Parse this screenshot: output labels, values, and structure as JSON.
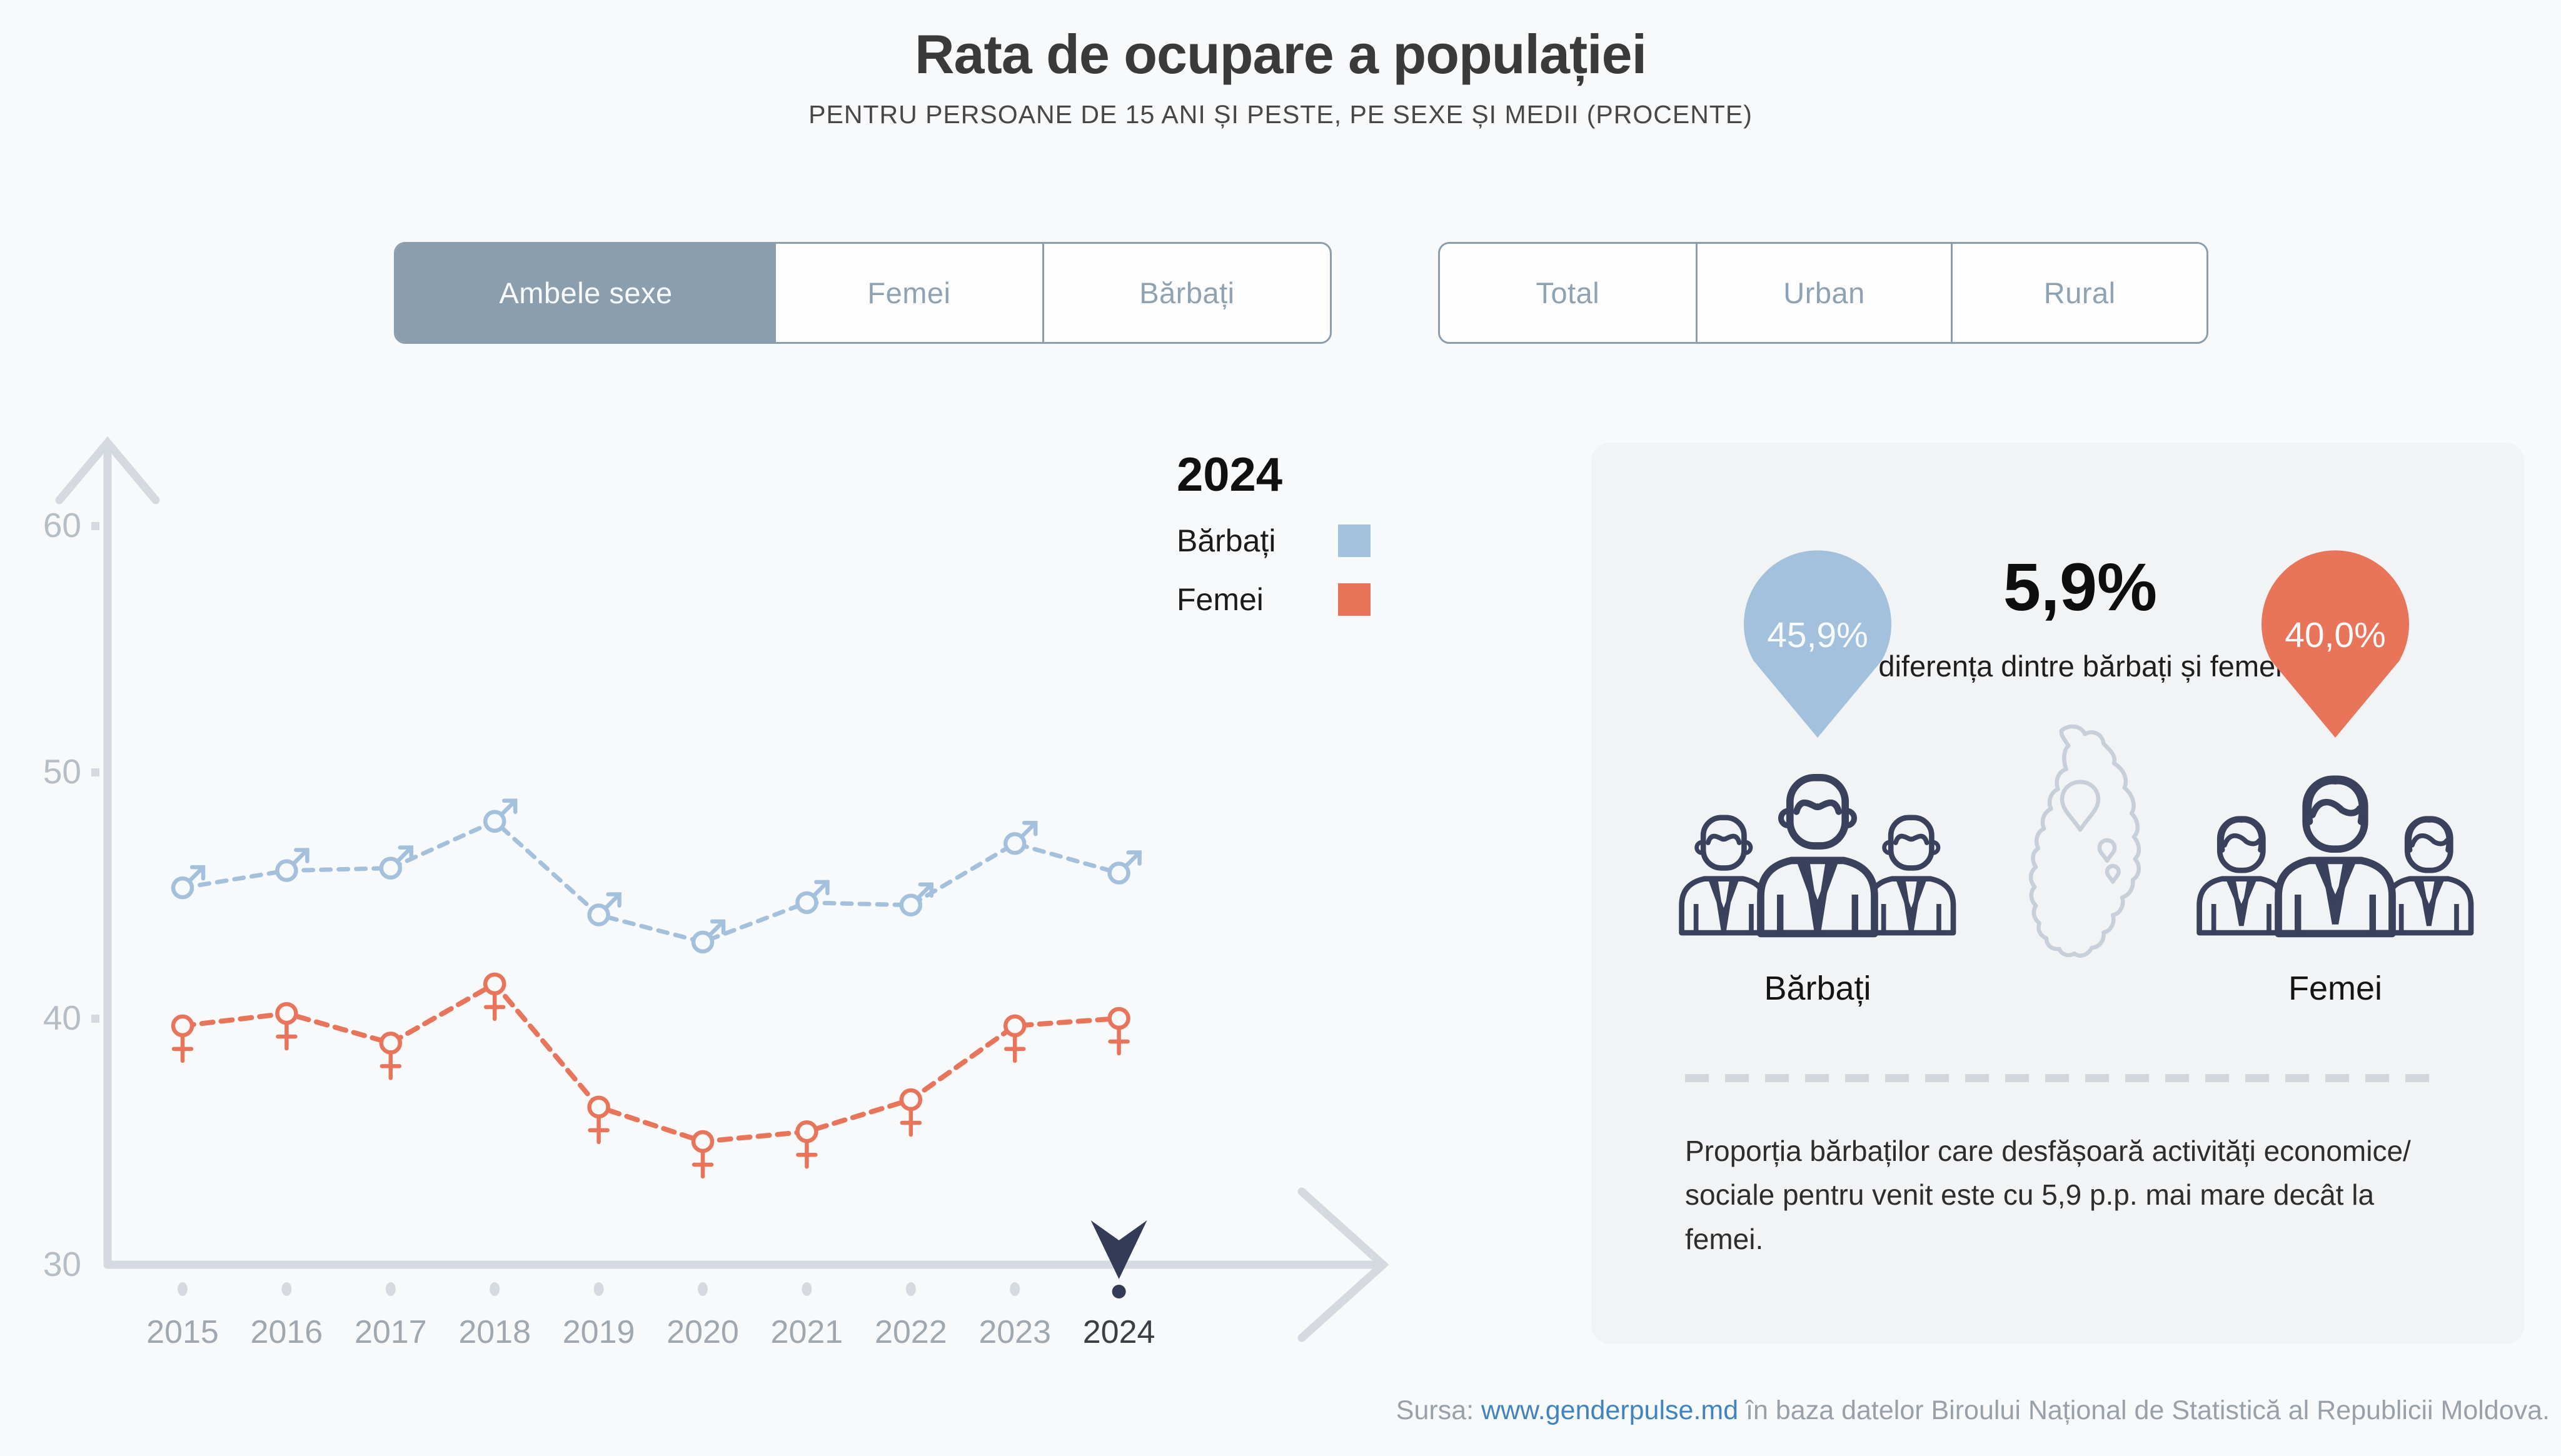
{
  "header": {
    "title": "Rata de ocupare a populației",
    "subtitle": "PENTRU PERSOANE DE 15 ANI ȘI PESTE, PE SEXE ȘI MEDII (PROCENTE)"
  },
  "controls": {
    "sex_tabs": [
      {
        "label": "Ambele sexe",
        "selected": true
      },
      {
        "label": "Femei",
        "selected": false
      },
      {
        "label": "Bărbați",
        "selected": false
      }
    ],
    "area_tabs": [
      {
        "label": "Total",
        "selected": false
      },
      {
        "label": "Urban",
        "selected": false
      },
      {
        "label": "Rural",
        "selected": false
      }
    ]
  },
  "legend": {
    "year": "2024",
    "items": [
      {
        "label": "Bărbați",
        "color": "#A3C1DD"
      },
      {
        "label": "Femei",
        "color": "#E8745A"
      }
    ]
  },
  "chart_data": {
    "type": "line",
    "title": "Rata de ocupare a populației",
    "categories": [
      "2015",
      "2016",
      "2017",
      "2018",
      "2019",
      "2020",
      "2021",
      "2022",
      "2023",
      "2024"
    ],
    "series": [
      {
        "name": "Bărbați",
        "marker": "male",
        "color": "#A3C1DD",
        "values": [
          45.3,
          46.0,
          46.1,
          48.0,
          44.2,
          43.1,
          44.7,
          44.6,
          47.1,
          45.9
        ]
      },
      {
        "name": "Femei",
        "marker": "female",
        "color": "#E8745A",
        "values": [
          39.7,
          40.2,
          39.0,
          41.4,
          36.4,
          35.0,
          35.4,
          36.7,
          39.7,
          40.0
        ]
      }
    ],
    "ylim": [
      30,
      63
    ],
    "yticks": [
      30,
      40,
      50,
      60
    ],
    "selected_category": "2024",
    "grid": false,
    "line_style": "dashed",
    "legend_position": "top-right"
  },
  "panel": {
    "men_pin_value": "45,9%",
    "women_pin_value": "40,0%",
    "diff_value": "5,9%",
    "diff_caption": "diferența dintre bărbați și femei",
    "men_label": "Bărbați",
    "women_label": "Femei",
    "note": "Proporția bărbaților care desfășoară activități economice/ sociale pentru venit este cu 5,9 p.p. mai mare decât la femei."
  },
  "footer": {
    "prefix": "Sursa: ",
    "link": "www.genderpulse.md",
    "suffix": " în baza datelor Biroului Național de Statistică al Republicii Moldova."
  },
  "colors": {
    "page_bg": "#F8F9FA",
    "panel_bg": "#F2F3F5",
    "axis": "#D5DAE1",
    "axis_label": "#B5BDC6",
    "year_label": "#9FA8B1",
    "year_label_selected": "#3A3F46",
    "navy": "#333B56",
    "icon_navy": "#39415C",
    "map_outline": "#C7D0DA",
    "blue": "#A3C1DD",
    "orange": "#E8745A",
    "tab_accent": "#8B9EAD",
    "link_blue": "#4083BE"
  }
}
